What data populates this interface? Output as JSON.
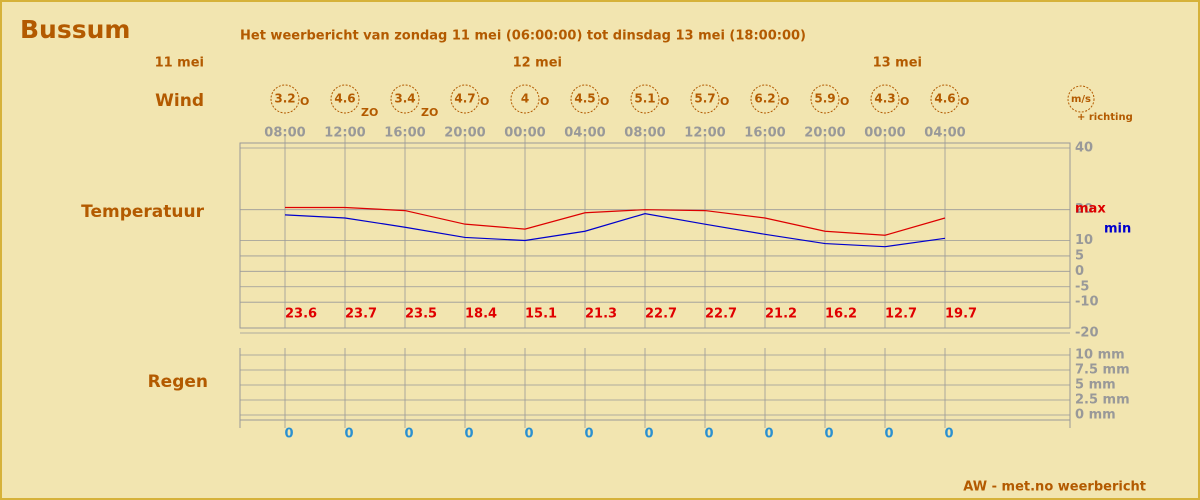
{
  "header": {
    "title": "Bussum",
    "subtitle": "Het weerbericht van zondag 11 mei (06:00:00) tot dinsdag 13 mei (18:00:00)"
  },
  "days": [
    "11 mei",
    "12 mei",
    "13 mei"
  ],
  "times": [
    "08:00",
    "12:00",
    "16:00",
    "20:00",
    "00:00",
    "04:00",
    "08:00",
    "12:00",
    "16:00",
    "20:00",
    "00:00",
    "04:00"
  ],
  "wind": {
    "label": "Wind",
    "unit": "m/s",
    "unit_note": "+ richting",
    "speeds": [
      3.2,
      4.6,
      3.4,
      4.7,
      4,
      4.5,
      5.1,
      5.7,
      6.2,
      5.9,
      4.3,
      4.6
    ],
    "directions": [
      "O",
      "ZO",
      "ZO",
      "O",
      "O",
      "O",
      "O",
      "O",
      "O",
      "O",
      "O",
      "O"
    ]
  },
  "temperature": {
    "label": "Temperatuur",
    "ylim": [
      -20,
      40
    ],
    "yticks": [
      40,
      20,
      10,
      5,
      0,
      -5,
      -10,
      -20
    ],
    "series": [
      {
        "name": "max",
        "color": "#dd0000",
        "values": [
          20.7,
          20.7,
          19.7,
          15.3,
          13.7,
          19,
          20,
          19.7,
          17.3,
          13,
          11.7,
          17.3
        ]
      },
      {
        "name": "min",
        "color": "#0000cc",
        "values": [
          18.3,
          17.3,
          14.3,
          11,
          10,
          13,
          18.7,
          15.3,
          12,
          9,
          8,
          10.7
        ]
      }
    ],
    "value_labels": [
      23.6,
      23.7,
      23.5,
      18.4,
      15.1,
      21.3,
      22.7,
      22.7,
      21.2,
      16.2,
      12.7,
      19.7
    ]
  },
  "rain": {
    "label": "Regen",
    "ylim": [
      0,
      10
    ],
    "yticks": [
      {
        "value": 10,
        "label": "10 mm"
      },
      {
        "value": 7.5,
        "label": "7.5 mm"
      },
      {
        "value": 5,
        "label": "5 mm"
      },
      {
        "value": 2.5,
        "label": "2.5 mm"
      },
      {
        "value": 0,
        "label": "0 mm"
      }
    ],
    "values": [
      0,
      0,
      0,
      0,
      0,
      0,
      0,
      0,
      0,
      0,
      0,
      0
    ]
  },
  "footer": "AW - met.no weerbericht"
}
